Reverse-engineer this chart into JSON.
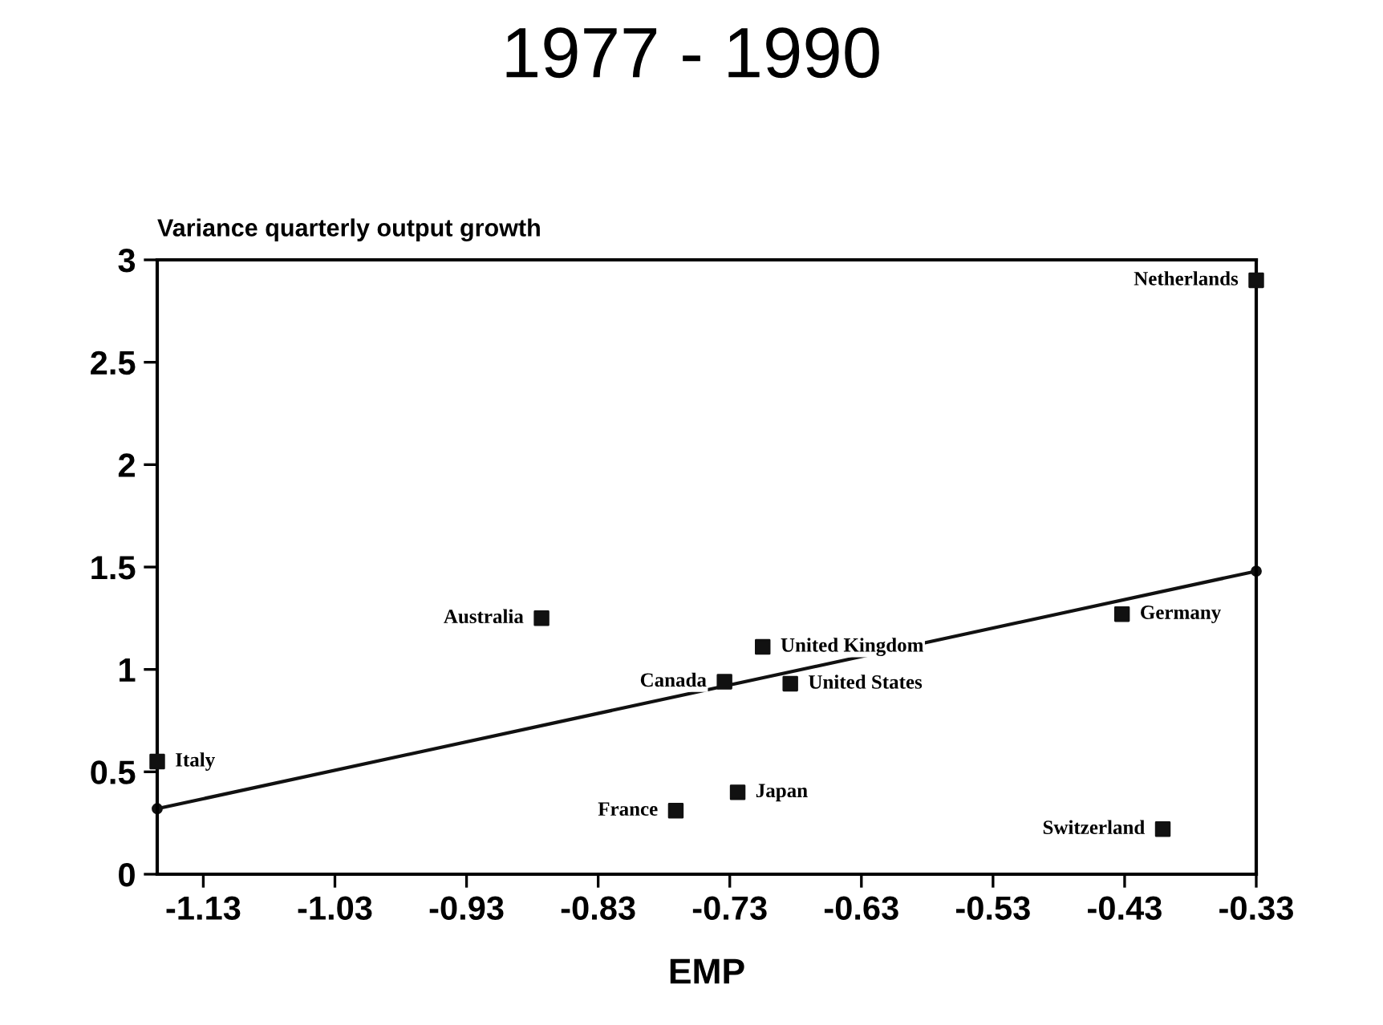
{
  "chart_data": {
    "type": "scatter",
    "title": "1977 - 1990",
    "ylabel": "Variance quarterly output growth",
    "xlabel": "EMP",
    "xlim": [
      -1.165,
      -0.33
    ],
    "ylim": [
      0,
      3
    ],
    "xticks": [
      -1.13,
      -1.03,
      -0.93,
      -0.83,
      -0.73,
      -0.63,
      -0.53,
      -0.43,
      -0.33
    ],
    "yticks": [
      0,
      0.5,
      1,
      1.5,
      2,
      2.5,
      3
    ],
    "grid": false,
    "legend": false,
    "series": [
      {
        "color": "#111111",
        "marker": "square",
        "x": [
          -0.33,
          -0.873,
          -0.705,
          -0.734,
          -0.684,
          -0.432,
          -1.165,
          -0.724,
          -0.771,
          -0.401
        ],
        "values": [
          2.9,
          1.25,
          1.11,
          0.94,
          0.93,
          1.27,
          0.55,
          0.4,
          0.31,
          0.22
        ]
      },
      {
        "type": "line",
        "color": "#111111",
        "marker": "circle",
        "x": [
          -1.165,
          -0.33
        ],
        "values": [
          0.32,
          1.48
        ]
      }
    ],
    "annotations": [
      {
        "text": "Netherlands",
        "x": -0.33,
        "y": 2.9
      },
      {
        "text": "Australia",
        "x": -0.873,
        "y": 1.25
      },
      {
        "text": "United Kingdom",
        "x": -0.705,
        "y": 1.11
      },
      {
        "text": "Canada",
        "x": -0.734,
        "y": 0.94
      },
      {
        "text": "United States",
        "x": -0.684,
        "y": 0.93
      },
      {
        "text": "Germany",
        "x": -0.432,
        "y": 1.27
      },
      {
        "text": "Italy",
        "x": -1.165,
        "y": 0.55
      },
      {
        "text": "Japan",
        "x": -0.724,
        "y": 0.4
      },
      {
        "text": "France",
        "x": -0.771,
        "y": 0.31
      },
      {
        "text": "Switzerland",
        "x": -0.401,
        "y": 0.22
      }
    ]
  }
}
